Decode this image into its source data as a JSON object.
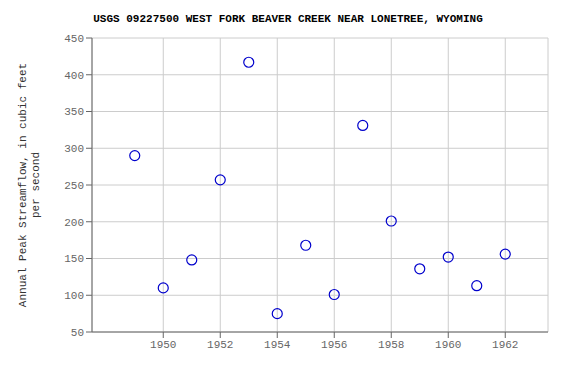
{
  "chart_data": {
    "type": "scatter",
    "title": "USGS 09227500 WEST FORK BEAVER CREEK NEAR LONETREE, WYOMING",
    "ylabel": "Annual Peak Streamflow, in cubic feet\nper second",
    "x": [
      1949,
      1950,
      1951,
      1952,
      1953,
      1954,
      1955,
      1956,
      1957,
      1958,
      1959,
      1960,
      1961,
      1962
    ],
    "values": [
      290,
      110,
      148,
      257,
      417,
      75,
      168,
      101,
      331,
      201,
      136,
      152,
      113,
      156
    ],
    "color": "#0000cc",
    "marker": "circle",
    "xlim": [
      1947.5,
      1963.5
    ],
    "ylim": [
      50,
      450
    ],
    "xticks": [
      1950,
      1952,
      1954,
      1956,
      1958,
      1960,
      1962
    ],
    "yticks": [
      50,
      100,
      150,
      200,
      250,
      300,
      350,
      400,
      450
    ],
    "grid": true
  }
}
